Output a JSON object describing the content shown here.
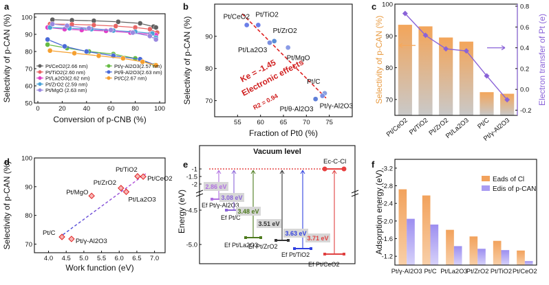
{
  "colors": {
    "orange": "#f5a85c",
    "purple": "#8a63d8",
    "red": "#e02020",
    "blue": "#5b5bd6",
    "darkred": "#d01f1f"
  },
  "chart_data": [
    {
      "panel": "a",
      "type": "line",
      "xlabel": "Conversion of p-CNB  (%)",
      "ylabel": "Selectivity of p-CAN  (%)",
      "xlim": [
        0,
        100
      ],
      "ylim": [
        50,
        100
      ],
      "xticks": [
        0,
        20,
        40,
        60,
        80,
        100
      ],
      "yticks": [
        50,
        60,
        70,
        80,
        90,
        100
      ],
      "legend_position": "bottom-left",
      "series": [
        {
          "name": "Pt/CeO2(2.66 nm)",
          "color": "#606060",
          "x": [
            12,
            28,
            46,
            66,
            84,
            95,
            97
          ],
          "y": [
            98.5,
            98.2,
            97.9,
            97.3,
            96.4,
            94.5,
            94
          ]
        },
        {
          "name": "Pt/TiO2(2.60 nm)",
          "color": "#e86464",
          "x": [
            10,
            28,
            46,
            64,
            80,
            92,
            98
          ],
          "y": [
            96,
            95.8,
            95.4,
            94.8,
            94,
            93,
            91
          ]
        },
        {
          "name": "Pt/La2O3(2.62 nm)",
          "color": "#e040c8",
          "x": [
            8,
            22,
            36,
            56,
            76,
            92,
            97
          ],
          "y": [
            94,
            93,
            92.5,
            92,
            91,
            90,
            89.5
          ]
        },
        {
          "name": "Pt/ZrO2 (2.59 nm)",
          "color": "#4aa3d8",
          "x": [
            10,
            26,
            44,
            62,
            80,
            94,
            97
          ],
          "y": [
            94,
            93.5,
            93,
            92.2,
            91.5,
            90.5,
            88
          ]
        },
        {
          "name": "Pt/MgO (2.63 nm)",
          "color": "#9a88e0",
          "x": [
            12,
            24,
            42,
            60,
            78,
            92,
            97
          ],
          "y": [
            96,
            95,
            93.5,
            92.5,
            91,
            89,
            87
          ]
        },
        {
          "name": "Pt/γ-Al2O3(2.57 nm)",
          "color": "#66bb44",
          "x": [
            8,
            24,
            42,
            62,
            80,
            96
          ],
          "y": [
            84,
            82,
            80,
            78.5,
            76,
            72
          ]
        },
        {
          "name": "Pt/θ-Al2O3(2.63 nm)",
          "color": "#4a6ad8",
          "x": [
            8,
            22,
            40,
            62,
            84,
            97
          ],
          "y": [
            87,
            83,
            80,
            77.5,
            75.5,
            72
          ]
        },
        {
          "name": "Pt/C(2.67 nm)",
          "color": "#f5a030",
          "x": [
            10,
            30,
            50,
            70,
            86,
            97
          ],
          "y": [
            80.5,
            79,
            77.5,
            76,
            74,
            72
          ]
        }
      ]
    },
    {
      "panel": "b",
      "type": "scatter",
      "xlabel": "Fraction of Pt0 (%)",
      "ylabel": "Selectivity of p-CAN (%)",
      "xlim": [
        50,
        80
      ],
      "ylim": [
        65,
        100
      ],
      "xticks": [
        55,
        60,
        65,
        70,
        75
      ],
      "yticks": [
        70,
        80,
        90
      ],
      "annotations": [
        "Ke = -1.45",
        "Electronic effects",
        "R2 = 0.94"
      ],
      "fit": {
        "x": [
          56,
          74.5
        ],
        "y": [
          97,
          70.5
        ]
      },
      "points": [
        {
          "label": "Pt/TiO2",
          "x": 59.5,
          "y": 93.5
        },
        {
          "label": "Pt/CeO2",
          "x": 57,
          "y": 93.5
        },
        {
          "label": "Pt/ZrO2",
          "x": 63,
          "y": 88.5
        },
        {
          "label": "Pt/La2O3",
          "x": 62,
          "y": 88
        },
        {
          "label": "Pt/MgO",
          "x": 66,
          "y": 86.5
        },
        {
          "label": "Pt/C",
          "x": 74,
          "y": 72.3
        },
        {
          "label": "Pt/θ-Al2O3",
          "x": 72,
          "y": 70.5
        },
        {
          "label": "Pt/γ-Al2O3",
          "x": 73.5,
          "y": 71.5
        }
      ]
    },
    {
      "panel": "c",
      "type": "bar",
      "categories": [
        "Pt/CeO2",
        "Pt/TiO2",
        "Pt/ZrO2",
        "Pt/La2O3",
        "Pt/C",
        "Pt/γ-Al2O3"
      ],
      "values": [
        93.5,
        93,
        89.5,
        88.2,
        72.3,
        71.8
      ],
      "ylabel": "Selectivity of p-CAN (%)",
      "ylim": [
        65,
        100
      ],
      "yticks": [
        70,
        80,
        90,
        100
      ],
      "secondary": {
        "ylabel": "Electron transfer of Pt (e)",
        "values": [
          0.73,
          0.52,
          0.39,
          0.37,
          0.13,
          -0.1
        ],
        "ylim": [
          -0.25,
          0.82
        ],
        "yticks": [
          -0.2,
          0,
          0.2,
          0.4,
          0.6,
          0.8
        ]
      }
    },
    {
      "panel": "d",
      "type": "scatter",
      "xlabel": "Work function (eV)",
      "ylabel": "Selectivity of p-CAN (%)",
      "xlim": [
        3.6,
        7.3
      ],
      "ylim": [
        67,
        100
      ],
      "xticks": [
        4.0,
        4.5,
        5.0,
        5.5,
        6.0,
        6.5,
        7.0
      ],
      "yticks": [
        70,
        80,
        90,
        100
      ],
      "fit": {
        "x": [
          4.3,
          6.75
        ],
        "y": [
          72.3,
          94.5
        ]
      },
      "points": [
        {
          "label": "Pt/C",
          "x": 4.38,
          "y": 72.5
        },
        {
          "label": "Pt/γ-Al2O3",
          "x": 4.65,
          "y": 71.8
        },
        {
          "label": "Pt/MgO",
          "x": 5.22,
          "y": 86.8
        },
        {
          "label": "Pt/ZrO2",
          "x": 6.05,
          "y": 89.5
        },
        {
          "label": "Pt/La2O3",
          "x": 6.2,
          "y": 88.2
        },
        {
          "label": "Pt/TiO2",
          "x": 6.52,
          "y": 93.6
        },
        {
          "label": "Pt/CeO2",
          "x": 6.68,
          "y": 93.5
        }
      ]
    },
    {
      "panel": "e",
      "type": "diagram",
      "ylabel": "Energy (eV)",
      "title": "Vacuum level",
      "yticks": [
        "-1",
        "-1.5",
        "-2",
        "-4.5",
        "-5.0"
      ],
      "ec_label": "Ec-C-Cl",
      "gaps": [
        {
          "value": "2.86 eV",
          "level": "Ef Pt/γ-Al2O3",
          "color": "#b070e0"
        },
        {
          "value": "3.08 eV",
          "level": "Ef Pt/C",
          "color": "#8a63d8"
        },
        {
          "value": "3.48 eV",
          "level": "Ef Pt/La2O3",
          "color": "#4c7a1c"
        },
        {
          "value": "3.51 eV",
          "level": "Ef Pt/ZrO2",
          "color": "#333333"
        },
        {
          "value": "3.63 eV",
          "level": "Ef Pt/TiO2",
          "color": "#3040e0"
        },
        {
          "value": "3.71 eV",
          "level": "Ef Pt/CeO2",
          "color": "#e04040"
        }
      ]
    },
    {
      "panel": "f",
      "type": "bar",
      "categories": [
        "Pt/γ-Al2O3",
        "Pt/C",
        "Pt/La2O3",
        "Pt/ZrO2",
        "Pt/TiO2",
        "Pt/CeO2"
      ],
      "series": [
        {
          "name": "Eads of Cl",
          "values": [
            -2.72,
            -2.58,
            -1.8,
            -1.65,
            -1.55,
            -1.33
          ]
        },
        {
          "name": "Edis of p-CAN",
          "values": [
            -2.05,
            -1.92,
            -1.43,
            -1.37,
            -1.34,
            -1.09
          ]
        }
      ],
      "ylabel": "Adsorption energy (eV)",
      "ylim": [
        -3.4,
        -1.0
      ],
      "yticks": [
        -3.2,
        -2.8,
        -2.4,
        -2.0,
        -1.6,
        -1.2
      ],
      "inverted": true,
      "legend_position": "top-right"
    }
  ]
}
